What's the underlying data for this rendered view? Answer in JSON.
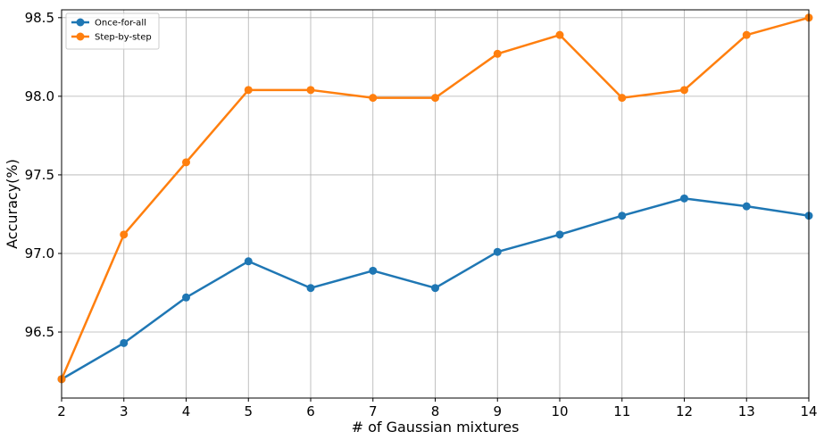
{
  "chart_data": {
    "type": "line",
    "title": "",
    "xlabel": "# of Gaussian mixtures",
    "ylabel": "Accuracy(%)",
    "x": [
      2,
      3,
      4,
      5,
      6,
      7,
      8,
      9,
      10,
      11,
      12,
      13,
      14
    ],
    "xlim": [
      2,
      14
    ],
    "ylim": [
      96.08,
      98.55
    ],
    "xticks": [
      2,
      3,
      4,
      5,
      6,
      7,
      8,
      9,
      10,
      11,
      12,
      13,
      14
    ],
    "yticks": [
      96.5,
      97.0,
      97.5,
      98.0,
      98.5
    ],
    "ytick_labels": [
      "96.5",
      "97.0",
      "97.5",
      "98.0",
      "98.5"
    ],
    "grid": true,
    "legend_position": "top-left",
    "series": [
      {
        "name": "Once-for-all",
        "color": "#1f77b4",
        "values": [
          96.2,
          96.43,
          96.72,
          96.95,
          96.78,
          96.89,
          96.78,
          97.01,
          97.12,
          97.24,
          97.35,
          97.3,
          97.24
        ]
      },
      {
        "name": "Step-by-step",
        "color": "#ff7f0e",
        "values": [
          96.2,
          97.12,
          97.58,
          98.04,
          98.04,
          97.99,
          97.99,
          98.27,
          98.39,
          97.99,
          98.04,
          98.39,
          98.5
        ]
      }
    ]
  }
}
